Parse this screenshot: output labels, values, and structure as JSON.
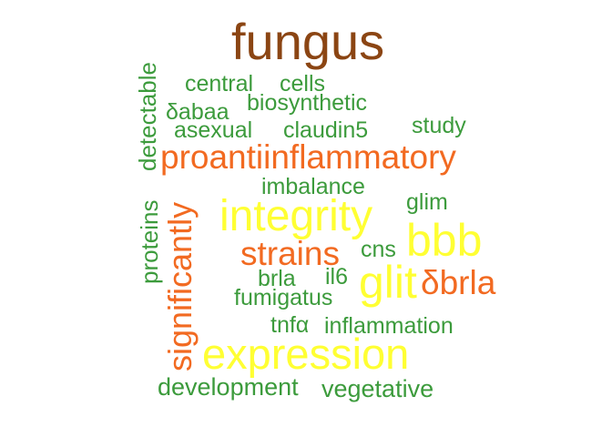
{
  "words": {
    "fungus": "fungus",
    "central": "central",
    "cells": "cells",
    "biosynthetic": "biosynthetic",
    "dabaa": "δabaa",
    "asexual": "asexual",
    "claudin5": "claudin5",
    "study": "study",
    "proantiinflammatory": "proantiinflammatory",
    "imbalance": "imbalance",
    "glim": "glim",
    "integrity": "integrity",
    "bbb": "bbb",
    "strains": "strains",
    "cns": "cns",
    "glit": "glit",
    "dbrla": "δbrla",
    "brla": "brla",
    "il6": "il6",
    "fumigatus": "fumigatus",
    "tnfa": "tnfα",
    "inflammation": "inflammation",
    "expression": "expression",
    "development": "development",
    "vegetative": "vegetative",
    "detectable": "detectable",
    "proteins": "proteins",
    "significantly": "significantly"
  },
  "colors": {
    "brown": "#8b4513",
    "orange": "#f26a21",
    "yellow": "#ffff33",
    "green": "#3c9b3c"
  }
}
